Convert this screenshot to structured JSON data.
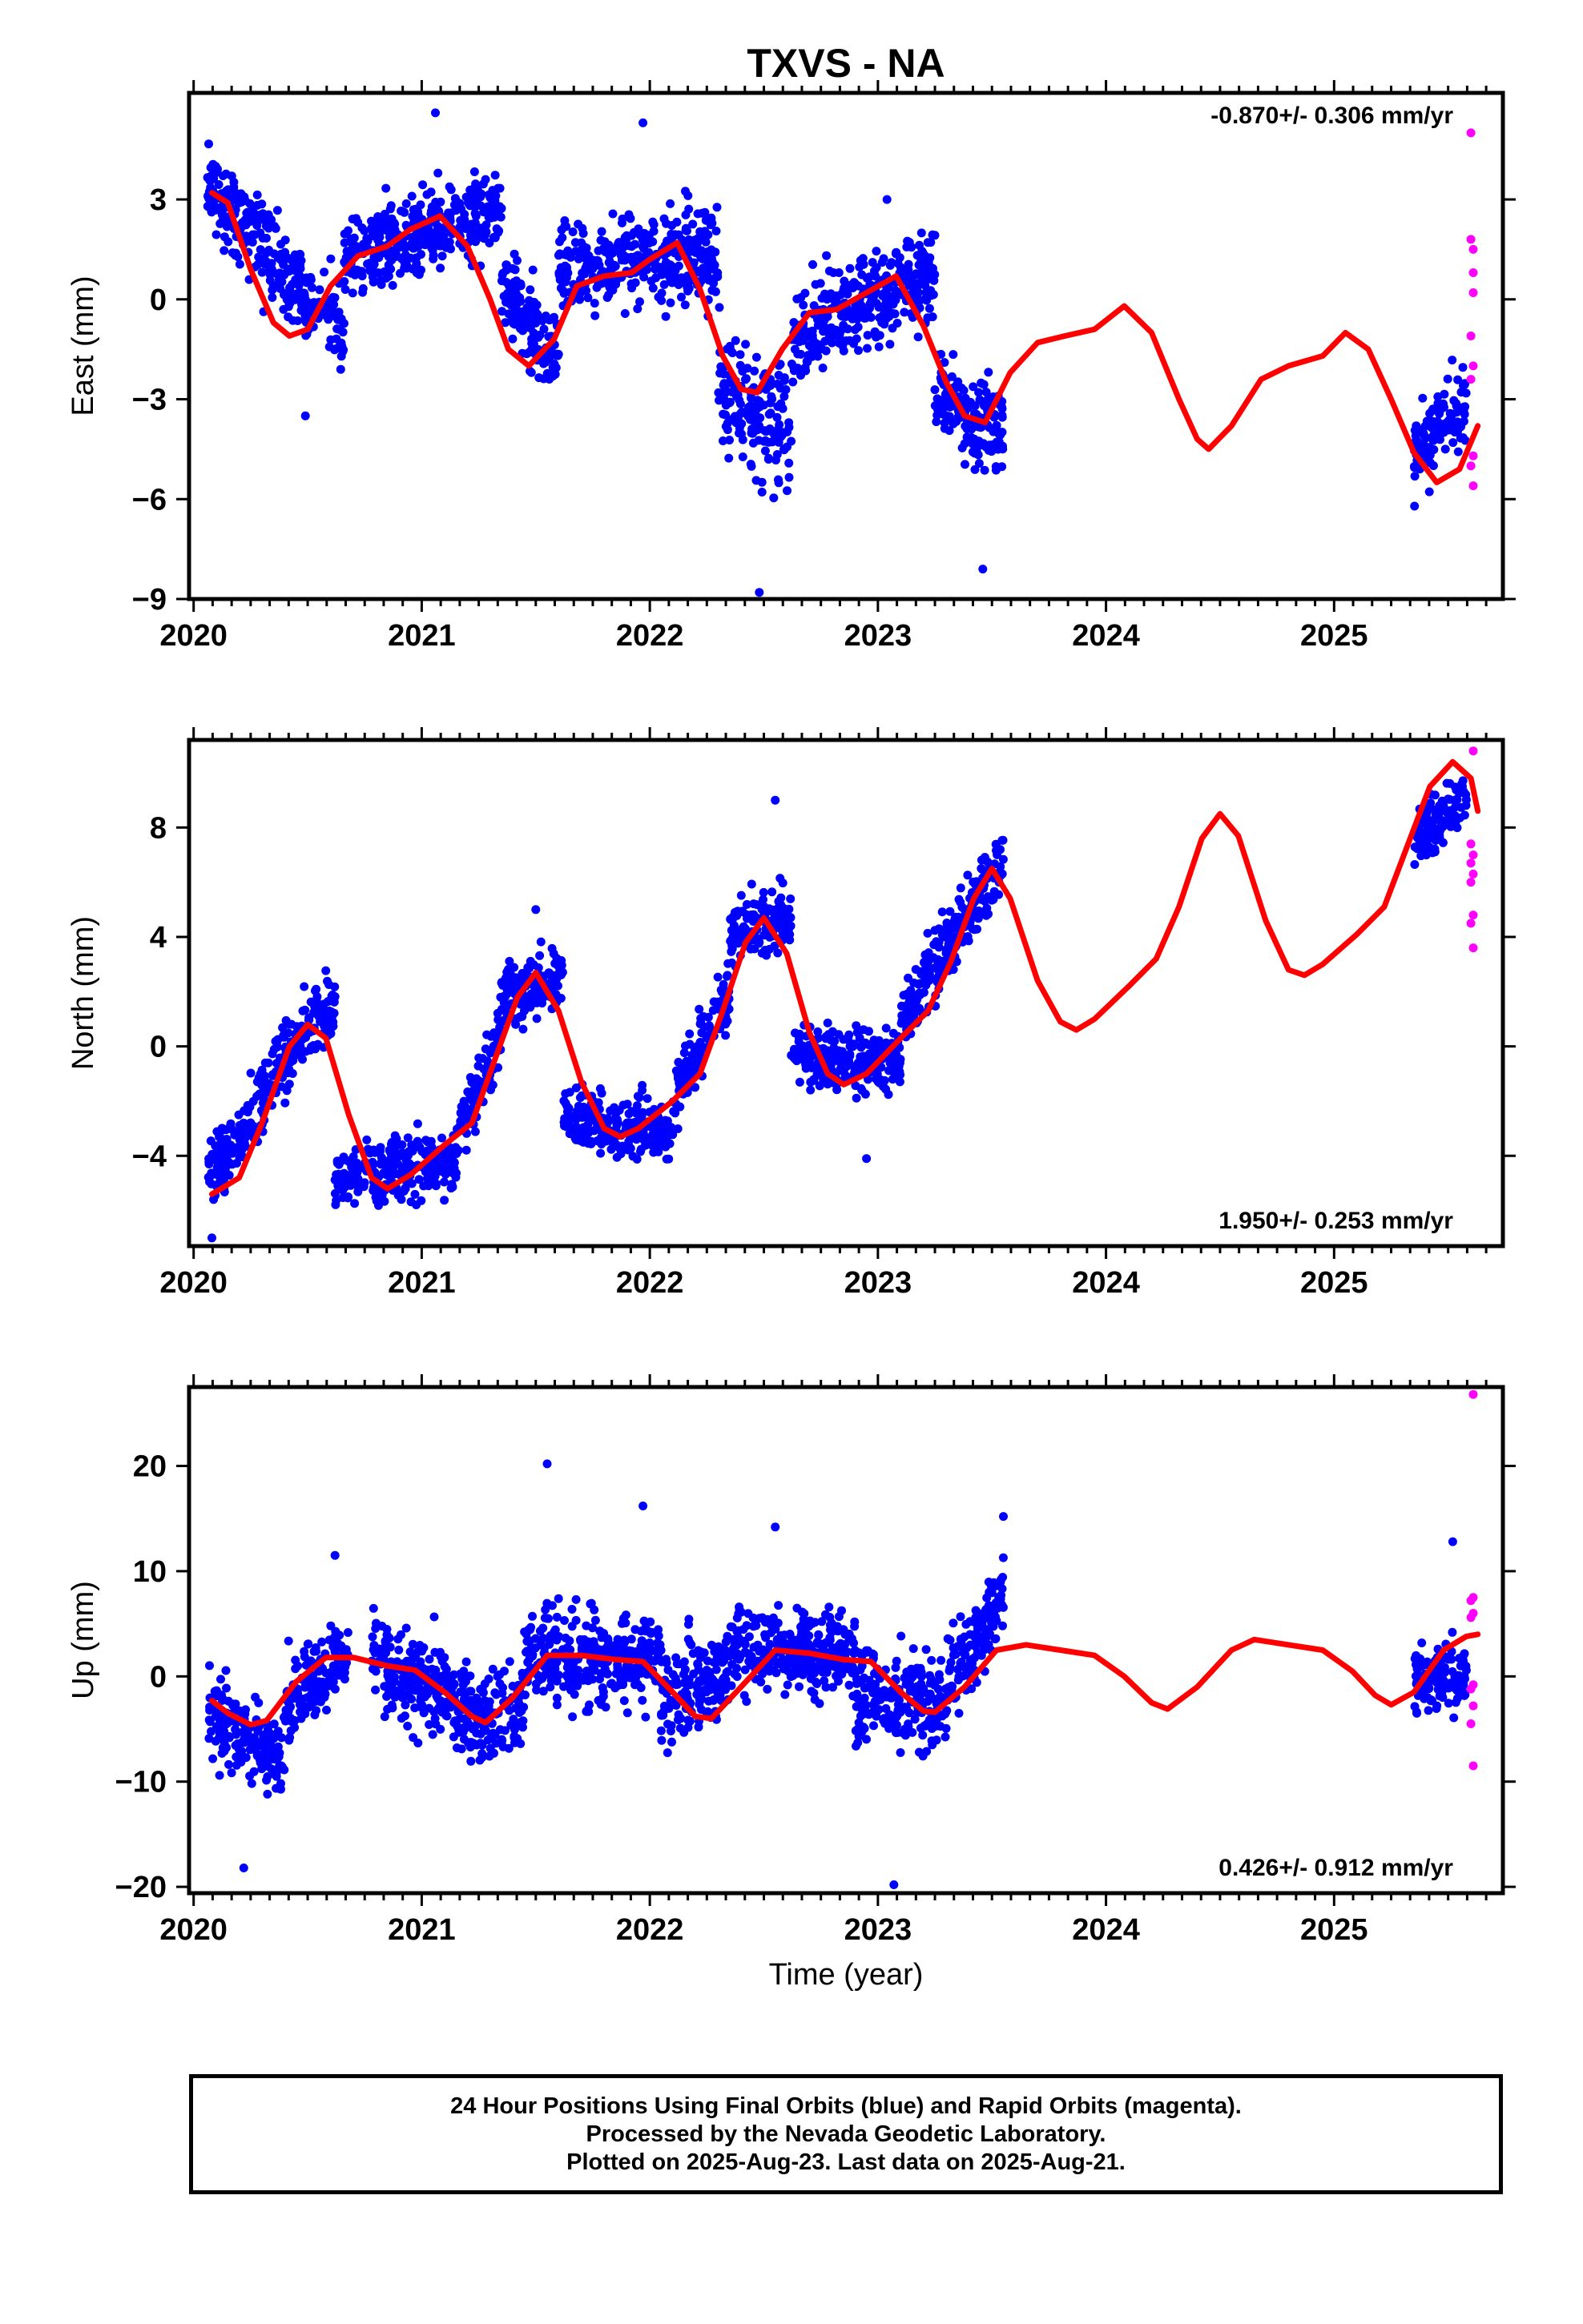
{
  "title": "TXVS - NA",
  "xlabel": "Time (year)",
  "colors": {
    "final": "#0000ff",
    "rapid": "#ff00ff",
    "model": "#ff0000",
    "frame": "#000000"
  },
  "footer": {
    "line1": "24 Hour Positions Using Final Orbits (blue) and Rapid Orbits (magenta).",
    "line2": "Processed by the Nevada Geodetic Laboratory.",
    "line3": "Plotted on 2025-Aug-23. Last data on 2025-Aug-21."
  },
  "chart_data": [
    {
      "type": "scatter",
      "component": "east",
      "ylabel": "East (mm)",
      "rate": "-0.870+/- 0.306 mm/yr",
      "rate_position": "top-right",
      "xlim": [
        2019.98,
        2025.74
      ],
      "ylim": [
        -9.0,
        6.2
      ],
      "xticks": [
        2020,
        2021,
        2022,
        2023,
        2024,
        2025
      ],
      "yticks": [
        -9,
        -6,
        -3,
        0,
        3
      ],
      "ytick_labels": [
        "−9",
        "−6",
        "−3",
        "0",
        "3"
      ],
      "final_gaps": [
        [
          2023.55,
          2025.35
        ]
      ],
      "model_curve": [
        [
          2020.08,
          3.2
        ],
        [
          2020.15,
          2.9
        ],
        [
          2020.25,
          0.9
        ],
        [
          2020.35,
          -0.7
        ],
        [
          2020.42,
          -1.1
        ],
        [
          2020.5,
          -0.9
        ],
        [
          2020.6,
          0.4
        ],
        [
          2020.72,
          1.3
        ],
        [
          2020.85,
          1.6
        ],
        [
          2020.95,
          2.1
        ],
        [
          2021.08,
          2.5
        ],
        [
          2021.2,
          1.6
        ],
        [
          2021.3,
          0.0
        ],
        [
          2021.38,
          -1.5
        ],
        [
          2021.47,
          -2.0
        ],
        [
          2021.58,
          -1.2
        ],
        [
          2021.68,
          0.4
        ],
        [
          2021.8,
          0.7
        ],
        [
          2021.92,
          0.8
        ],
        [
          2022.0,
          1.2
        ],
        [
          2022.12,
          1.7
        ],
        [
          2022.22,
          0.3
        ],
        [
          2022.32,
          -1.7
        ],
        [
          2022.4,
          -2.7
        ],
        [
          2022.47,
          -2.8
        ],
        [
          2022.58,
          -1.5
        ],
        [
          2022.7,
          -0.4
        ],
        [
          2022.82,
          -0.3
        ],
        [
          2022.95,
          0.2
        ],
        [
          2023.08,
          0.7
        ],
        [
          2023.2,
          -0.8
        ],
        [
          2023.3,
          -2.5
        ],
        [
          2023.38,
          -3.5
        ],
        [
          2023.47,
          -3.7
        ],
        [
          2023.58,
          -2.2
        ],
        [
          2023.7,
          -1.3
        ],
        [
          2023.82,
          -1.1
        ],
        [
          2023.95,
          -0.9
        ],
        [
          2024.08,
          -0.2
        ],
        [
          2024.2,
          -1.0
        ],
        [
          2024.32,
          -3.0
        ],
        [
          2024.4,
          -4.2
        ],
        [
          2024.45,
          -4.5
        ],
        [
          2024.55,
          -3.8
        ],
        [
          2024.68,
          -2.4
        ],
        [
          2024.8,
          -2.0
        ],
        [
          2024.95,
          -1.7
        ],
        [
          2025.05,
          -1.0
        ],
        [
          2025.15,
          -1.5
        ],
        [
          2025.25,
          -3.0
        ],
        [
          2025.35,
          -4.6
        ],
        [
          2025.45,
          -5.5
        ],
        [
          2025.55,
          -5.1
        ],
        [
          2025.63,
          -3.8
        ]
      ],
      "final_clusters": [
        {
          "t": [
            2020.06,
            2020.66
          ],
          "y": [
            3.3,
            -1.0
          ],
          "spread": 1.2
        },
        {
          "t": [
            2020.66,
            2021.35
          ],
          "y": [
            1.2,
            2.8
          ],
          "spread": 1.2
        },
        {
          "t": [
            2021.35,
            2021.6
          ],
          "y": [
            0.5,
            -1.8
          ],
          "spread": 1.3
        },
        {
          "t": [
            2021.6,
            2022.3
          ],
          "y": [
            0.9,
            1.5
          ],
          "spread": 1.3
        },
        {
          "t": [
            2022.3,
            2022.62
          ],
          "y": [
            -2.5,
            -4.2
          ],
          "spread": 1.8
        },
        {
          "t": [
            2022.62,
            2023.25
          ],
          "y": [
            -1.0,
            0.8
          ],
          "spread": 1.4
        },
        {
          "t": [
            2023.25,
            2023.55
          ],
          "y": [
            -2.8,
            -3.9
          ],
          "spread": 1.4
        },
        {
          "t": [
            2025.35,
            2025.58
          ],
          "y": [
            -4.8,
            -3.0
          ],
          "spread": 1.2
        }
      ],
      "final_outliers": [
        [
          2021.97,
          5.3
        ],
        [
          2021.06,
          5.6
        ],
        [
          2022.48,
          -8.8
        ],
        [
          2023.46,
          -8.1
        ],
        [
          2020.49,
          -3.5
        ],
        [
          2021.28,
          3.6
        ],
        [
          2023.04,
          3.0
        ]
      ],
      "rapid_points": [
        [
          2025.6,
          5.0
        ],
        [
          2025.6,
          1.8
        ],
        [
          2025.61,
          1.5
        ],
        [
          2025.61,
          0.8
        ],
        [
          2025.61,
          0.2
        ],
        [
          2025.6,
          -1.1
        ],
        [
          2025.6,
          -2.4
        ],
        [
          2025.61,
          -4.7
        ],
        [
          2025.6,
          -5.0
        ],
        [
          2025.61,
          -5.6
        ],
        [
          2025.61,
          -2.0
        ]
      ]
    },
    {
      "type": "scatter",
      "component": "north",
      "ylabel": "North (mm)",
      "rate": "1.950+/- 0.253 mm/yr",
      "rate_position": "bottom-right",
      "xlim": [
        2019.98,
        2025.74
      ],
      "ylim": [
        -7.3,
        11.2
      ],
      "xticks": [
        2020,
        2021,
        2022,
        2023,
        2024,
        2025
      ],
      "yticks": [
        -4,
        0,
        4,
        8
      ],
      "ytick_labels": [
        "−4",
        "0",
        "4",
        "8"
      ],
      "final_gaps": [
        [
          2023.55,
          2025.35
        ]
      ],
      "model_curve": [
        [
          2020.08,
          -5.4
        ],
        [
          2020.2,
          -4.8
        ],
        [
          2020.3,
          -2.8
        ],
        [
          2020.42,
          0.0
        ],
        [
          2020.5,
          0.8
        ],
        [
          2020.58,
          0.3
        ],
        [
          2020.68,
          -2.5
        ],
        [
          2020.78,
          -4.8
        ],
        [
          2020.85,
          -5.2
        ],
        [
          2020.95,
          -4.7
        ],
        [
          2021.1,
          -3.6
        ],
        [
          2021.22,
          -2.8
        ],
        [
          2021.32,
          -0.5
        ],
        [
          2021.42,
          1.8
        ],
        [
          2021.5,
          2.7
        ],
        [
          2021.6,
          1.3
        ],
        [
          2021.7,
          -1.3
        ],
        [
          2021.8,
          -3.0
        ],
        [
          2021.87,
          -3.3
        ],
        [
          2021.95,
          -3.0
        ],
        [
          2022.1,
          -2.0
        ],
        [
          2022.22,
          -1.0
        ],
        [
          2022.32,
          1.3
        ],
        [
          2022.42,
          3.8
        ],
        [
          2022.5,
          4.7
        ],
        [
          2022.6,
          3.4
        ],
        [
          2022.7,
          0.5
        ],
        [
          2022.78,
          -1.0
        ],
        [
          2022.85,
          -1.4
        ],
        [
          2022.95,
          -1.0
        ],
        [
          2023.1,
          0.3
        ],
        [
          2023.22,
          1.3
        ],
        [
          2023.32,
          3.1
        ],
        [
          2023.42,
          5.4
        ],
        [
          2023.5,
          6.5
        ],
        [
          2023.58,
          5.4
        ],
        [
          2023.7,
          2.4
        ],
        [
          2023.8,
          0.9
        ],
        [
          2023.87,
          0.6
        ],
        [
          2023.95,
          1.0
        ],
        [
          2024.1,
          2.2
        ],
        [
          2024.22,
          3.2
        ],
        [
          2024.32,
          5.1
        ],
        [
          2024.42,
          7.6
        ],
        [
          2024.5,
          8.5
        ],
        [
          2024.58,
          7.7
        ],
        [
          2024.7,
          4.6
        ],
        [
          2024.8,
          2.8
        ],
        [
          2024.87,
          2.6
        ],
        [
          2024.95,
          3.0
        ],
        [
          2025.1,
          4.1
        ],
        [
          2025.22,
          5.1
        ],
        [
          2025.32,
          7.3
        ],
        [
          2025.42,
          9.5
        ],
        [
          2025.52,
          10.4
        ],
        [
          2025.6,
          9.8
        ],
        [
          2025.63,
          8.6
        ]
      ],
      "final_clusters": [
        {
          "t": [
            2020.06,
            2020.35
          ],
          "y": [
            -4.8,
            -1.2
          ],
          "spread": 1.2
        },
        {
          "t": [
            2020.35,
            2020.62
          ],
          "y": [
            -0.8,
            1.5
          ],
          "spread": 1.3
        },
        {
          "t": [
            2020.62,
            2021.15
          ],
          "y": [
            -4.8,
            -4.2
          ],
          "spread": 1.1
        },
        {
          "t": [
            2021.15,
            2021.35
          ],
          "y": [
            -3.5,
            0.5
          ],
          "spread": 1.2
        },
        {
          "t": [
            2021.35,
            2021.62
          ],
          "y": [
            1.8,
            2.6
          ],
          "spread": 1.1
        },
        {
          "t": [
            2021.62,
            2022.1
          ],
          "y": [
            -2.5,
            -3.2
          ],
          "spread": 1.1
        },
        {
          "t": [
            2022.1,
            2022.35
          ],
          "y": [
            -2.0,
            2.0
          ],
          "spread": 1.2
        },
        {
          "t": [
            2022.35,
            2022.62
          ],
          "y": [
            4.0,
            4.8
          ],
          "spread": 1.1
        },
        {
          "t": [
            2022.62,
            2023.1
          ],
          "y": [
            -0.3,
            -0.5
          ],
          "spread": 1.1
        },
        {
          "t": [
            2023.1,
            2023.55
          ],
          "y": [
            1.0,
            6.8
          ],
          "spread": 1.3
        },
        {
          "t": [
            2025.35,
            2025.58
          ],
          "y": [
            7.5,
            9.2
          ],
          "spread": 1.0
        }
      ],
      "final_outliers": [
        [
          2020.08,
          -7.0
        ],
        [
          2022.55,
          9.0
        ],
        [
          2022.95,
          -4.1
        ],
        [
          2021.5,
          5.0
        ]
      ],
      "rapid_points": [
        [
          2025.61,
          10.8
        ],
        [
          2025.6,
          7.4
        ],
        [
          2025.61,
          7.0
        ],
        [
          2025.6,
          6.7
        ],
        [
          2025.61,
          6.3
        ],
        [
          2025.6,
          6.0
        ],
        [
          2025.61,
          4.8
        ],
        [
          2025.6,
          4.5
        ],
        [
          2025.61,
          3.6
        ]
      ]
    },
    {
      "type": "scatter",
      "component": "up",
      "ylabel": "Up (mm)",
      "rate": "0.426+/- 0.912 mm/yr",
      "rate_position": "bottom-right",
      "xlim": [
        2019.98,
        2025.74
      ],
      "ylim": [
        -20.6,
        27.5
      ],
      "xticks": [
        2020,
        2021,
        2022,
        2023,
        2024,
        2025
      ],
      "yticks": [
        -20,
        -10,
        0,
        10,
        20
      ],
      "ytick_labels": [
        "−20",
        "−10",
        "0",
        "10",
        "20"
      ],
      "final_gaps": [
        [
          2023.55,
          2025.35
        ]
      ],
      "model_curve": [
        [
          2020.08,
          -2.3
        ],
        [
          2020.15,
          -3.5
        ],
        [
          2020.25,
          -4.6
        ],
        [
          2020.32,
          -4.2
        ],
        [
          2020.45,
          -0.5
        ],
        [
          2020.58,
          1.8
        ],
        [
          2020.7,
          1.8
        ],
        [
          2020.85,
          1.0
        ],
        [
          2020.97,
          0.6
        ],
        [
          2021.1,
          -1.5
        ],
        [
          2021.22,
          -3.8
        ],
        [
          2021.28,
          -4.4
        ],
        [
          2021.4,
          -2.0
        ],
        [
          2021.55,
          2.0
        ],
        [
          2021.7,
          2.0
        ],
        [
          2021.85,
          1.6
        ],
        [
          2021.97,
          1.4
        ],
        [
          2022.1,
          -1.5
        ],
        [
          2022.2,
          -3.8
        ],
        [
          2022.27,
          -4.0
        ],
        [
          2022.4,
          -1.0
        ],
        [
          2022.55,
          2.5
        ],
        [
          2022.7,
          2.2
        ],
        [
          2022.85,
          1.6
        ],
        [
          2022.97,
          1.4
        ],
        [
          2023.1,
          -1.5
        ],
        [
          2023.2,
          -3.3
        ],
        [
          2023.25,
          -3.4
        ],
        [
          2023.38,
          -1.0
        ],
        [
          2023.52,
          2.5
        ],
        [
          2023.65,
          3.0
        ],
        [
          2023.8,
          2.5
        ],
        [
          2023.95,
          2.0
        ],
        [
          2024.08,
          0.0
        ],
        [
          2024.2,
          -2.5
        ],
        [
          2024.27,
          -3.1
        ],
        [
          2024.4,
          -1.0
        ],
        [
          2024.55,
          2.5
        ],
        [
          2024.65,
          3.5
        ],
        [
          2024.8,
          3.0
        ],
        [
          2024.95,
          2.5
        ],
        [
          2025.08,
          0.5
        ],
        [
          2025.18,
          -1.8
        ],
        [
          2025.25,
          -2.7
        ],
        [
          2025.35,
          -1.5
        ],
        [
          2025.48,
          2.5
        ],
        [
          2025.58,
          3.8
        ],
        [
          2025.63,
          4.0
        ]
      ],
      "final_clusters": [
        {
          "t": [
            2020.06,
            2020.4
          ],
          "y": [
            -3.0,
            -8.5
          ],
          "spread": 4.0
        },
        {
          "t": [
            2020.4,
            2020.68
          ],
          "y": [
            -2.0,
            2.0
          ],
          "spread": 3.5
        },
        {
          "t": [
            2020.78,
            2021.15
          ],
          "y": [
            1.0,
            -2.0
          ],
          "spread": 4.5
        },
        {
          "t": [
            2021.15,
            2021.45
          ],
          "y": [
            -4.0,
            -3.0
          ],
          "spread": 4.5
        },
        {
          "t": [
            2021.45,
            2022.05
          ],
          "y": [
            2.0,
            1.5
          ],
          "spread": 4.5
        },
        {
          "t": [
            2022.05,
            2022.35
          ],
          "y": [
            -2.0,
            0.5
          ],
          "spread": 4.5
        },
        {
          "t": [
            2022.35,
            2022.9
          ],
          "y": [
            3.0,
            2.0
          ],
          "spread": 4.0
        },
        {
          "t": [
            2022.9,
            2023.3
          ],
          "y": [
            -1.5,
            -3.0
          ],
          "spread": 4.5
        },
        {
          "t": [
            2023.3,
            2023.55
          ],
          "y": [
            0.0,
            7.0
          ],
          "spread": 4.0
        },
        {
          "t": [
            2025.35,
            2025.58
          ],
          "y": [
            -1.0,
            0.5
          ],
          "spread": 3.5
        }
      ],
      "final_outliers": [
        [
          2021.55,
          20.2
        ],
        [
          2023.07,
          -19.8
        ],
        [
          2020.22,
          -18.2
        ],
        [
          2021.97,
          16.2
        ],
        [
          2023.55,
          15.2
        ],
        [
          2025.52,
          12.8
        ],
        [
          2022.55,
          14.2
        ],
        [
          2020.62,
          11.5
        ]
      ],
      "rapid_points": [
        [
          2025.61,
          26.8
        ],
        [
          2025.61,
          7.5
        ],
        [
          2025.6,
          7.2
        ],
        [
          2025.61,
          6.0
        ],
        [
          2025.6,
          5.6
        ],
        [
          2025.61,
          -0.8
        ],
        [
          2025.6,
          -1.2
        ],
        [
          2025.61,
          -2.8
        ],
        [
          2025.6,
          -4.5
        ],
        [
          2025.61,
          -8.5
        ]
      ]
    }
  ]
}
